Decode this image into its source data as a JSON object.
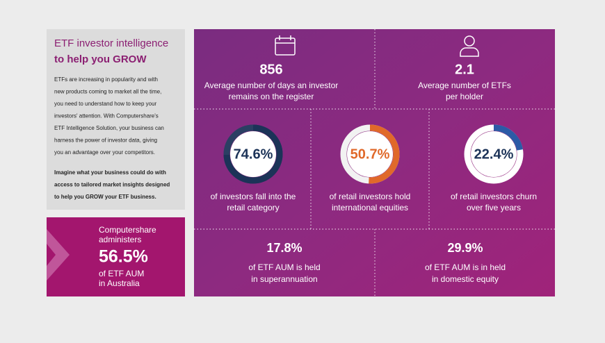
{
  "intro": {
    "title": "ETF investor intelligence",
    "subtitle": "to help you GROW",
    "paragraph1": [
      "ETFs are increasing in popularity and with",
      "new products coming to market all the time,",
      "you need to understand how to keep your",
      "investors' attention. With Computershare's",
      "ETF Intelligence Solution, your business can",
      "harness the power of investor data, giving",
      "you an advantage over your competitors."
    ],
    "paragraph2": [
      "Imagine what your business could do with",
      "access to tailored market insights designed",
      "to help you GROW your ETF business."
    ]
  },
  "callout": {
    "lines_before": [
      "Computershare",
      "administers"
    ],
    "figure": "56.5%",
    "lines_after": [
      "of ETF AUM",
      "in Australia"
    ]
  },
  "top_stats": [
    {
      "figure": "856",
      "caption": [
        "Average number of days an investor",
        "remains on the register"
      ]
    },
    {
      "figure": "2.1",
      "caption": [
        "Average number of ETFs",
        "per holder"
      ]
    }
  ],
  "donuts": [
    {
      "value": 74.6,
      "label": "74.6%",
      "color": "#1c3358",
      "caption": [
        "of investors fall into the",
        "retail category"
      ]
    },
    {
      "value": 50.7,
      "label": "50.7%",
      "color": "#e0692a",
      "caption": [
        "of retail investors hold",
        "international equities"
      ]
    },
    {
      "value": 22.4,
      "label": "22.4%",
      "color": "#2c5aa6",
      "caption": [
        "of retail investors churn",
        "over five years"
      ]
    }
  ],
  "bottom_stats": [
    {
      "figure": "17.8%",
      "caption": [
        "of ETF AUM is held",
        "in superannuation"
      ]
    },
    {
      "figure": "29.9%",
      "caption": [
        "of ETF AUM is in held",
        "in domestic equity"
      ]
    }
  ]
}
